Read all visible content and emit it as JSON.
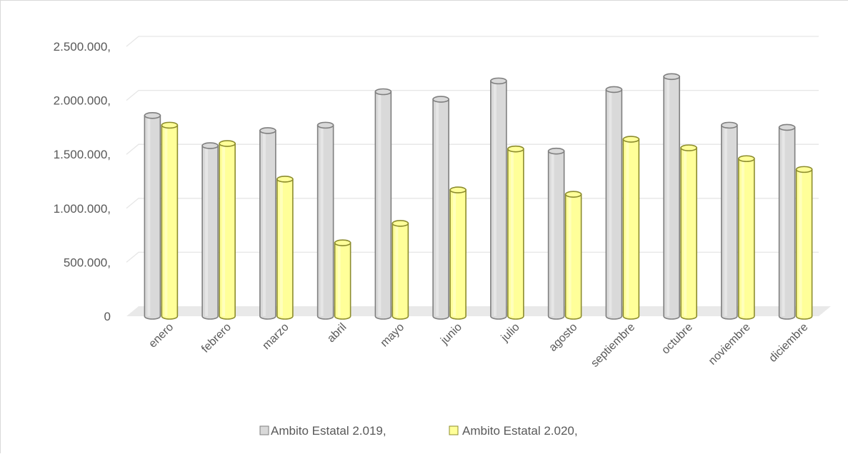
{
  "chart_data": {
    "type": "bar",
    "categories": [
      "enero",
      "febrero",
      "marzo",
      "abril",
      "mayo",
      "junio",
      "julio",
      "agosto",
      "septiembre",
      "octubre",
      "noviembre",
      "diciembre"
    ],
    "series": [
      {
        "name": "Ambito Estatal 2.019,",
        "values": [
          1860000,
          1580000,
          1720000,
          1770000,
          2080000,
          2010000,
          2180000,
          1530000,
          2100000,
          2220000,
          1770000,
          1750000
        ],
        "color": "#d9d9d9",
        "edge": "#7f7f7f"
      },
      {
        "name": "Ambito Estatal 2.020,",
        "values": [
          1770000,
          1600000,
          1270000,
          680000,
          860000,
          1170000,
          1550000,
          1130000,
          1640000,
          1560000,
          1460000,
          1360000
        ],
        "color": "#ffff99",
        "edge": "#8c8c2d"
      }
    ],
    "y_ticks": [
      "0",
      "500.000,",
      "1.000.000,",
      "1.500.000,",
      "2.000.000,",
      "2.500.000,"
    ],
    "ylim": [
      0,
      2500000
    ],
    "grid": true,
    "style": "3d-cylinder",
    "legend_position": "bottom"
  }
}
